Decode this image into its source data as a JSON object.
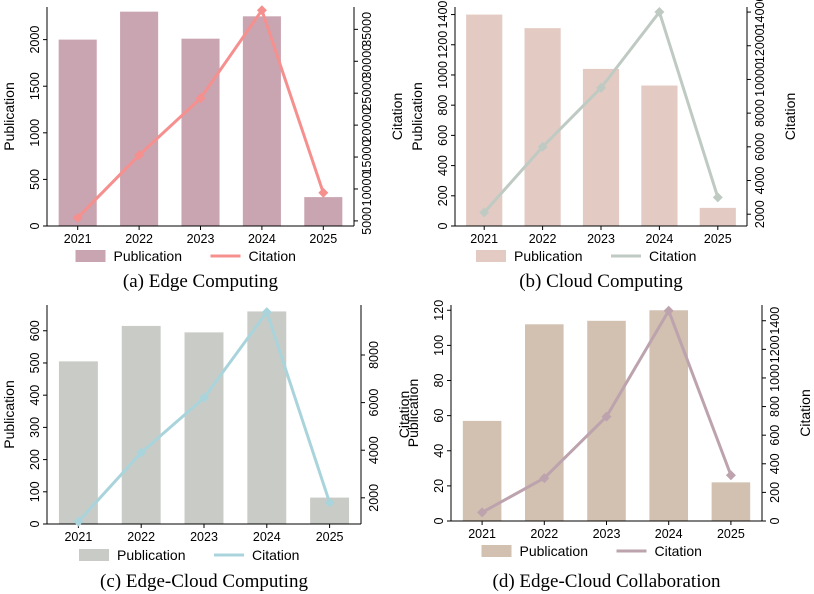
{
  "chart_data": [
    {
      "type": "bar+line",
      "caption": "(a) Edge Computing",
      "categories": [
        "2021",
        "2022",
        "2023",
        "2024",
        "2025"
      ],
      "series": [
        {
          "name": "Publication",
          "kind": "bar",
          "axis": "left",
          "values": [
            2000,
            2300,
            2010,
            2250,
            310
          ]
        },
        {
          "name": "Citation",
          "kind": "line",
          "axis": "right",
          "values": [
            5500,
            15300,
            24200,
            38000,
            9400
          ]
        }
      ],
      "ylabel": "Publication",
      "y2label": "Citation",
      "ylim": [
        0,
        2350
      ],
      "y2lim": [
        4200,
        38500
      ],
      "yticks": [
        0,
        500,
        1000,
        1500,
        2000
      ],
      "y2ticks": [
        5000,
        10000,
        15000,
        20000,
        25000,
        30000,
        35000
      ],
      "legend": [
        "Publication",
        "Citation"
      ],
      "colors": {
        "bar": "#c9a4b1",
        "line": "#f5908f"
      }
    },
    {
      "type": "bar+line",
      "caption": "(b) Cloud Computing",
      "categories": [
        "2021",
        "2022",
        "2023",
        "2024",
        "2025"
      ],
      "series": [
        {
          "name": "Publication",
          "kind": "bar",
          "axis": "left",
          "values": [
            1400,
            1310,
            1040,
            930,
            120
          ]
        },
        {
          "name": "Citation",
          "kind": "line",
          "axis": "right",
          "values": [
            2100,
            6000,
            9500,
            14000,
            3000
          ]
        }
      ],
      "ylabel": "Publication",
      "y2label": "Citation",
      "ylim": [
        0,
        1450
      ],
      "y2lim": [
        1300,
        14300
      ],
      "yticks": [
        0,
        200,
        400,
        600,
        800,
        1000,
        1200,
        1400
      ],
      "y2ticks": [
        2000,
        4000,
        6000,
        8000,
        10000,
        12000,
        14000
      ],
      "legend": [
        "Publication",
        "Citation"
      ],
      "colors": {
        "bar": "#e3cbc4",
        "line": "#bfcac3"
      }
    },
    {
      "type": "bar+line",
      "caption": "(c) Edge-Cloud Computing",
      "categories": [
        "2021",
        "2022",
        "2023",
        "2024",
        "2025"
      ],
      "series": [
        {
          "name": "Publication",
          "kind": "bar",
          "axis": "left",
          "values": [
            505,
            615,
            595,
            660,
            82
          ]
        },
        {
          "name": "Citation",
          "kind": "line",
          "axis": "right",
          "values": [
            1000,
            3900,
            6200,
            9800,
            1800
          ]
        }
      ],
      "ylabel": "Publication",
      "y2label": "Citation",
      "ylim": [
        0,
        680
      ],
      "y2lim": [
        900,
        10100
      ],
      "yticks": [
        0,
        100,
        200,
        300,
        400,
        500,
        600
      ],
      "y2ticks": [
        2000,
        4000,
        6000,
        8000
      ],
      "legend": [
        "Publication",
        "Citation"
      ],
      "colors": {
        "bar": "#c9ccc6",
        "line": "#a9d4dc"
      }
    },
    {
      "type": "bar+line",
      "caption": "(d) Edge-Cloud Collaboration",
      "categories": [
        "2021",
        "2022",
        "2023",
        "2024",
        "2025"
      ],
      "series": [
        {
          "name": "Publication",
          "kind": "bar",
          "axis": "left",
          "values": [
            57,
            112,
            114,
            120,
            22
          ]
        },
        {
          "name": "Citation",
          "kind": "line",
          "axis": "right",
          "values": [
            60,
            300,
            730,
            1470,
            320
          ]
        }
      ],
      "ylabel": "Publication",
      "y2label": "Citation",
      "ylim": [
        0,
        123
      ],
      "y2lim": [
        0,
        1510
      ],
      "yticks": [
        0,
        20,
        40,
        60,
        80,
        100,
        120
      ],
      "y2ticks": [
        0,
        200,
        400,
        600,
        800,
        1000,
        1200,
        1400
      ],
      "legend": [
        "Publication",
        "Citation"
      ],
      "colors": {
        "bar": "#d2c0b0",
        "line": "#bda3ad"
      }
    }
  ]
}
